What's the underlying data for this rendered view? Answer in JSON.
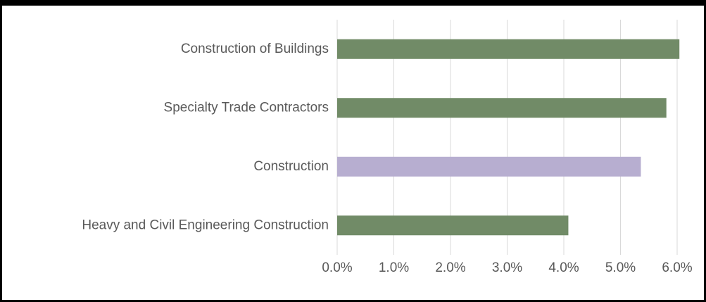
{
  "chart_data": {
    "type": "bar",
    "orientation": "horizontal",
    "categories": [
      "Construction of Buildings",
      "Specialty Trade Contractors",
      "Construction",
      "Heavy and Civil Engineering Construction"
    ],
    "values": [
      6.04,
      5.81,
      5.36,
      4.08
    ],
    "colors": [
      "#718b67",
      "#718b67",
      "#b7aed0",
      "#718b67"
    ],
    "xlim": [
      0,
      6
    ],
    "xticks": [
      {
        "value": 0,
        "label": "0.0%"
      },
      {
        "value": 1,
        "label": "1.0%"
      },
      {
        "value": 2,
        "label": "2.0%"
      },
      {
        "value": 3,
        "label": "3.0%"
      },
      {
        "value": 4,
        "label": "4.0%"
      },
      {
        "value": 5,
        "label": "5.0%"
      },
      {
        "value": 6,
        "label": "6.0%"
      }
    ],
    "grid": true
  }
}
